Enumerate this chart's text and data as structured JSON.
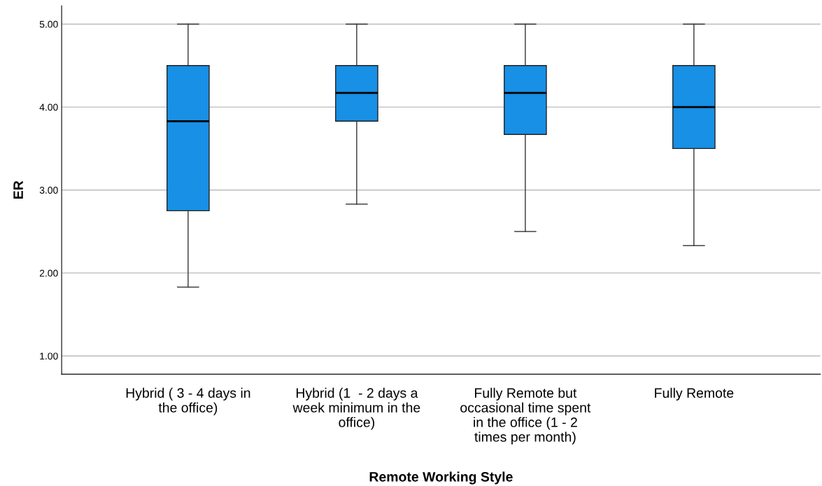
{
  "chart_data": {
    "type": "box",
    "xlabel": "Remote Working Style",
    "ylabel": "ER",
    "categories": [
      "Hybrid ( 3 - 4 days in the office)",
      "Hybrid (1  - 2 days a week minimum in the office)",
      "Fully Remote but occasional time spent in the office (1 - 2 times per month)",
      "Fully Remote"
    ],
    "color": "#1790e6",
    "boxes": [
      {
        "low": 1.83,
        "q1": 2.75,
        "median": 3.83,
        "q3": 4.5,
        "high": 5.0
      },
      {
        "low": 2.83,
        "q1": 3.83,
        "median": 4.17,
        "q3": 4.5,
        "high": 5.0
      },
      {
        "low": 2.5,
        "q1": 3.67,
        "median": 4.17,
        "q3": 4.5,
        "high": 5.0
      },
      {
        "low": 2.33,
        "q1": 3.5,
        "median": 4.0,
        "q3": 4.5,
        "high": 5.0
      }
    ],
    "ylim": [
      0.78,
      5.22
    ],
    "yticks": [
      {
        "value": 1,
        "label": "1.00"
      },
      {
        "value": 2,
        "label": "2.00"
      },
      {
        "value": 3,
        "label": "3.00"
      },
      {
        "value": 4,
        "label": "4.00"
      },
      {
        "value": 5,
        "label": "5.00"
      }
    ],
    "grid": "y"
  }
}
